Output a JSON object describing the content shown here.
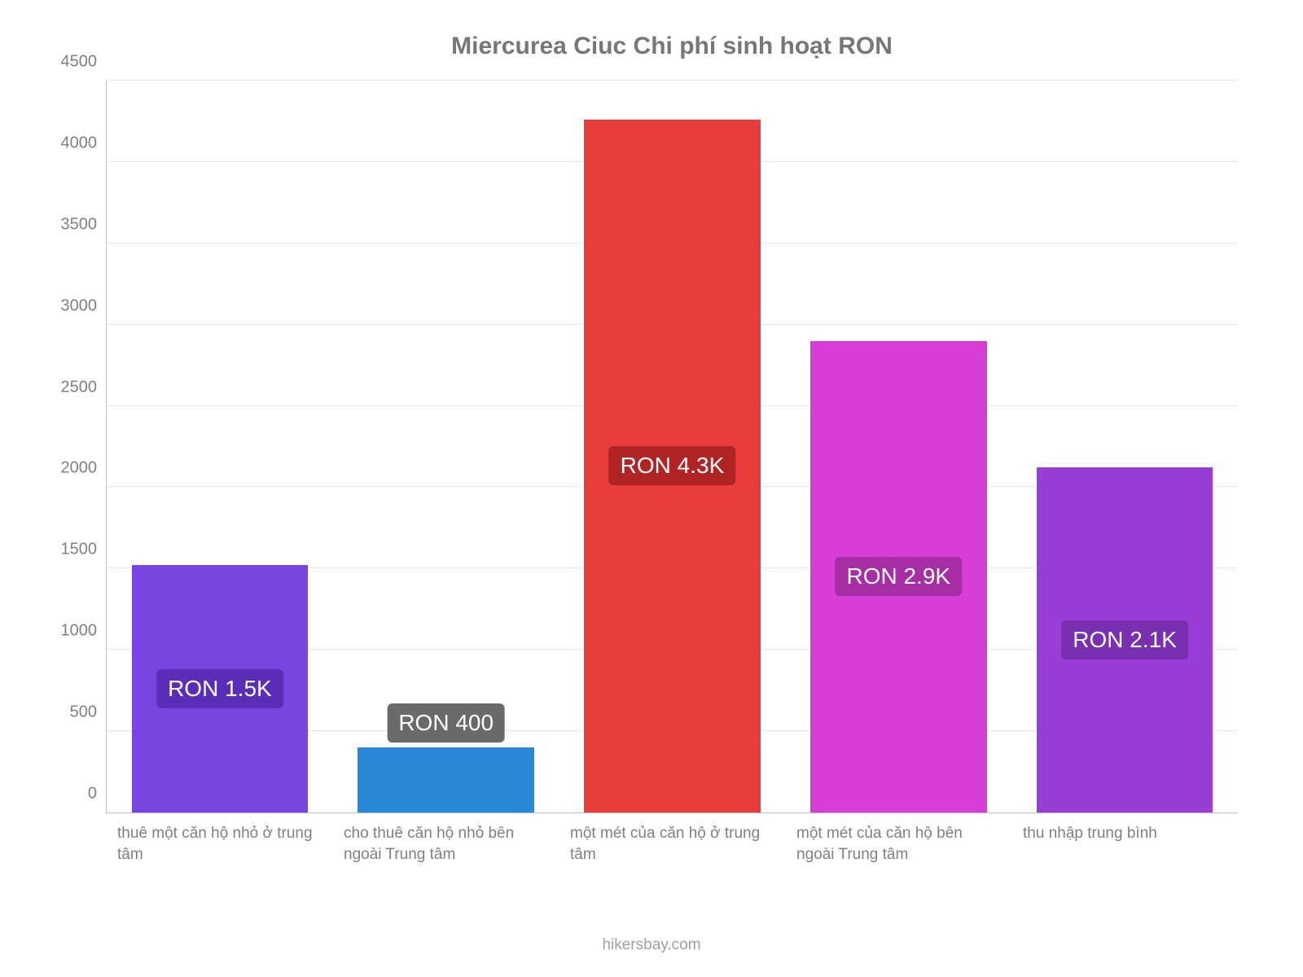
{
  "chart": {
    "type": "bar",
    "title": "Miercurea Ciuc Chi phí sinh hoạt RON",
    "title_color": "#777777",
    "title_fontsize": 30,
    "attribution": "hikersbay.com",
    "background_color": "#ffffff",
    "grid_color": "#e8e8e8",
    "axis_color": "#c0c0c0",
    "tick_color": "#808080",
    "tick_fontsize": 20,
    "xlabel_fontsize": 19,
    "badge_fontsize": 28,
    "ylim": [
      0,
      4500
    ],
    "ytick_step": 500,
    "yticks": [
      "0",
      "500",
      "1000",
      "1500",
      "2000",
      "2500",
      "3000",
      "3500",
      "4000",
      "4500"
    ],
    "bar_width": 0.78,
    "categories": [
      "thuê một căn hộ nhỏ ở trung tâm",
      "cho thuê căn hộ nhỏ bên ngoài Trung tâm",
      "một mét của căn hộ ở trung tâm",
      "một mét của căn hộ bên ngoài Trung tâm",
      "thu nhập trung bình"
    ],
    "values": [
      1520,
      400,
      4260,
      2900,
      2120
    ],
    "bar_colors": [
      "#7845e0",
      "#2788d8",
      "#e83c3c",
      "#d63cd6",
      "#9a3cd6"
    ],
    "badge_labels": [
      "RON 1.5K",
      "RON 400",
      "RON 4.3K",
      "RON 2.9K",
      "RON 2.1K"
    ],
    "badge_bg": [
      "#5a2eb8",
      "#6a6a6a",
      "#b02424",
      "#a52ea5",
      "#7a2eb0"
    ],
    "badge_pos": [
      "inside",
      "above",
      "inside",
      "inside",
      "inside"
    ]
  }
}
